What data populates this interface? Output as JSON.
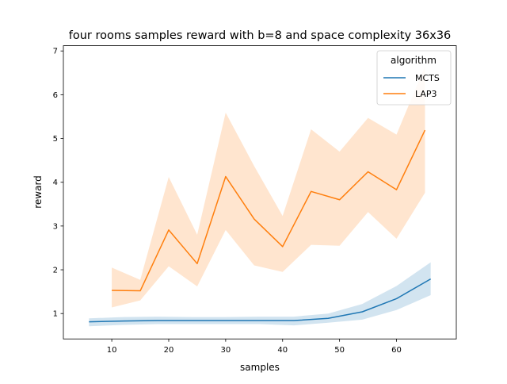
{
  "chart_data": {
    "type": "line",
    "title": "four rooms samples reward with b=8 and space complexity 36x36",
    "xlabel": "samples",
    "ylabel": "reward",
    "xlim": [
      1.5,
      70.5
    ],
    "ylim": [
      0.42,
      7.12
    ],
    "xticks": [
      10,
      20,
      30,
      40,
      50,
      60
    ],
    "yticks": [
      1,
      2,
      3,
      4,
      5,
      6,
      7
    ],
    "grid": false,
    "legend": {
      "title": "algorithm",
      "placement": "top-right"
    },
    "series": [
      {
        "name": "MCTS",
        "color": "#1f77b4",
        "x": [
          6,
          12,
          18,
          24,
          30,
          36,
          42,
          48,
          54,
          60,
          66
        ],
        "y": [
          0.81,
          0.83,
          0.84,
          0.84,
          0.84,
          0.84,
          0.84,
          0.89,
          1.04,
          1.34,
          1.79
        ],
        "lower": [
          0.71,
          0.74,
          0.76,
          0.76,
          0.76,
          0.76,
          0.73,
          0.79,
          0.86,
          1.08,
          1.42
        ],
        "upper": [
          0.89,
          0.92,
          0.93,
          0.92,
          0.92,
          0.93,
          0.93,
          1.0,
          1.22,
          1.63,
          2.17
        ]
      },
      {
        "name": "LAP3",
        "color": "#ff7f0e",
        "x": [
          10,
          15,
          20,
          25,
          30,
          35,
          40,
          45,
          50,
          55,
          60,
          65
        ],
        "y": [
          1.53,
          1.52,
          2.91,
          2.14,
          4.13,
          3.16,
          2.53,
          3.79,
          3.6,
          4.24,
          3.83,
          5.19
        ],
        "lower": [
          1.14,
          1.3,
          2.08,
          1.62,
          2.91,
          2.1,
          1.95,
          2.57,
          2.55,
          3.32,
          2.71,
          3.76
        ],
        "upper": [
          2.05,
          1.77,
          4.12,
          2.8,
          5.59,
          4.37,
          3.23,
          5.21,
          4.7,
          5.47,
          5.09,
          6.65
        ]
      }
    ]
  }
}
